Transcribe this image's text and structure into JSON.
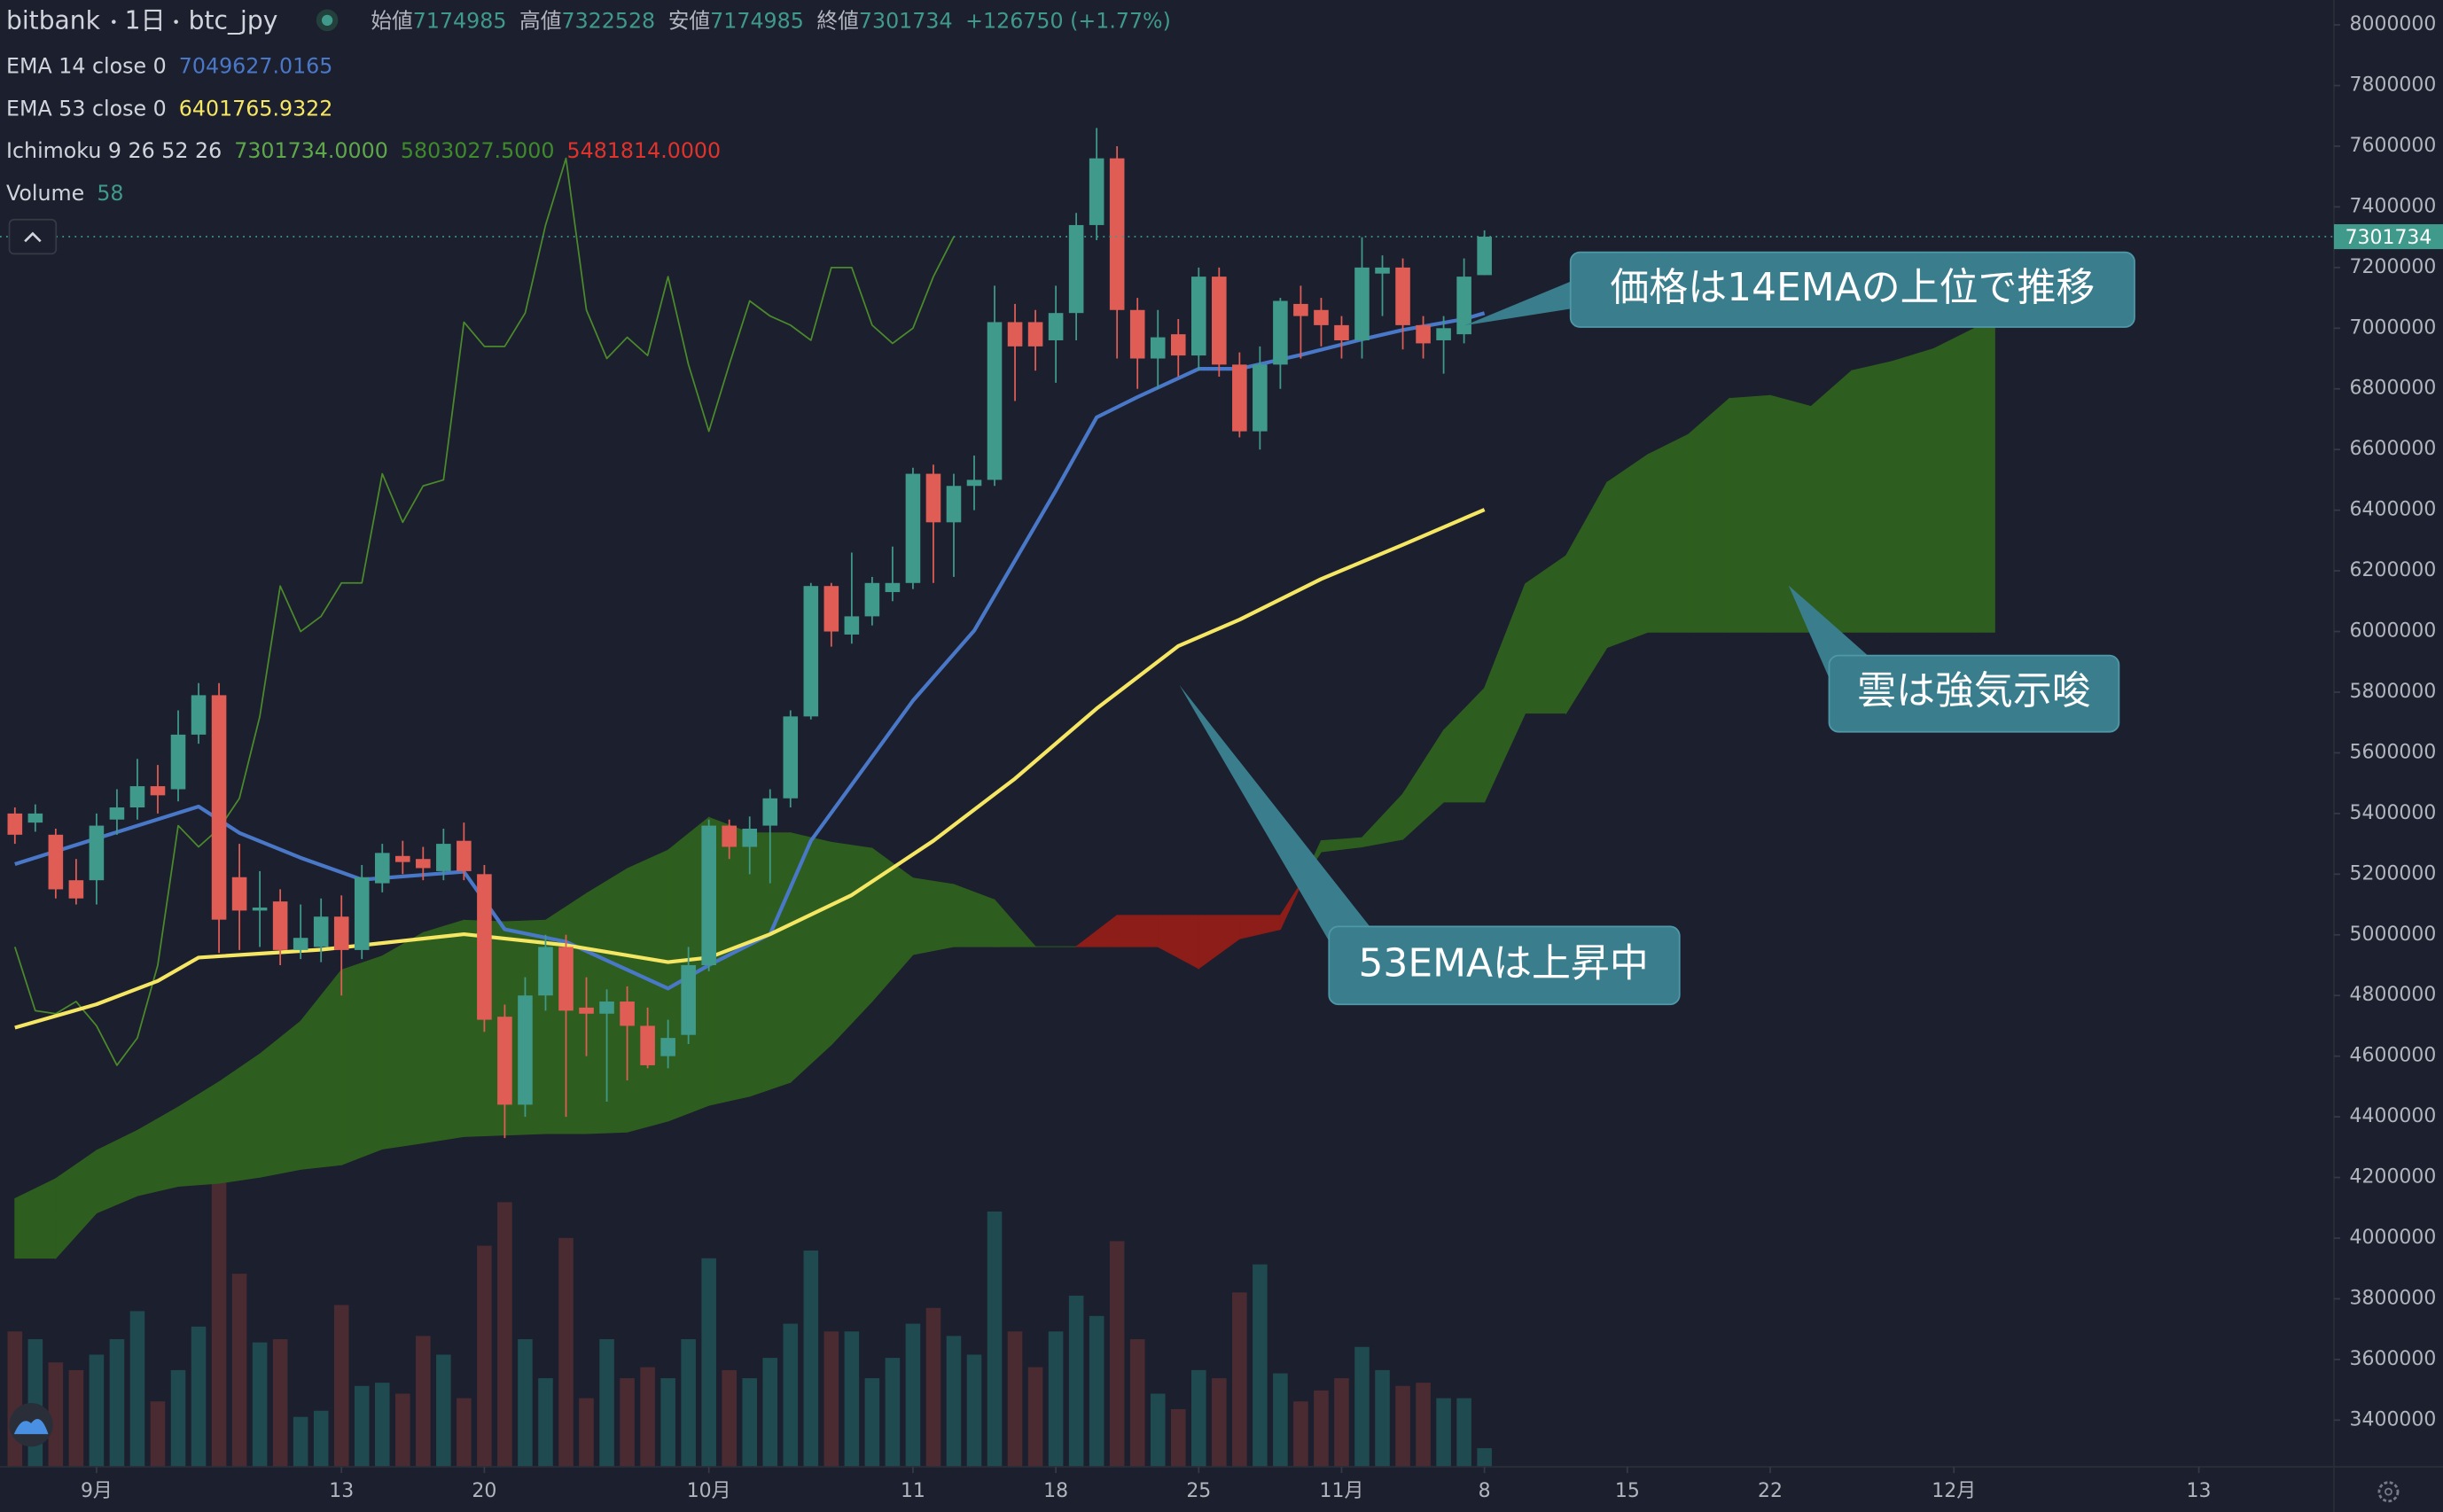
{
  "chart_data": {
    "type": "candlestick",
    "header": {
      "exchange": "bitbank",
      "interval": "1日",
      "symbol": "btc_jpy",
      "ohlc_labels": [
        "始値",
        "高値",
        "安値",
        "終値"
      ],
      "change": "+126750 (+1.77%)"
    },
    "xlim": [
      -4.73,
      109.62
    ],
    "xticks": [
      {
        "value": 0,
        "label": "9月"
      },
      {
        "value": 12,
        "label": "13"
      },
      {
        "value": 19,
        "label": "20"
      },
      {
        "value": 30,
        "label": "10月"
      },
      {
        "value": 40,
        "label": "11"
      },
      {
        "value": 47,
        "label": "18"
      },
      {
        "value": 54,
        "label": "25"
      },
      {
        "value": 61,
        "label": "11月"
      },
      {
        "value": 68,
        "label": "8"
      },
      {
        "value": 75,
        "label": "15"
      },
      {
        "value": 82,
        "label": "22"
      },
      {
        "value": 91,
        "label": "12月"
      },
      {
        "value": 103,
        "label": "13"
      }
    ],
    "ylim": [
      3246000,
      8082000
    ],
    "yticks": [
      3400000,
      3600000,
      3800000,
      4000000,
      4200000,
      4400000,
      4600000,
      4800000,
      5000000,
      5200000,
      5400000,
      5600000,
      5800000,
      6000000,
      6200000,
      6400000,
      6600000,
      6800000,
      7000000,
      7200000,
      7400000,
      7600000,
      7800000,
      8000000
    ],
    "grid": false,
    "candles": {
      "up_color": "#3f9a8b",
      "down_color": "#e05d55",
      "x": [
        -4,
        -3,
        -2,
        -1,
        0,
        1,
        2,
        3,
        4,
        5,
        6,
        7,
        8,
        9,
        10,
        11,
        12,
        13,
        14,
        15,
        16,
        17,
        18,
        19,
        20,
        21,
        22,
        23,
        24,
        25,
        26,
        27,
        28,
        29,
        30,
        31,
        32,
        33,
        34,
        35,
        36,
        37,
        38,
        39,
        40,
        41,
        42,
        43,
        44,
        45,
        46,
        47,
        48,
        49,
        50,
        51,
        52,
        53,
        54,
        55,
        56,
        57,
        58,
        59,
        60,
        61,
        62,
        63,
        64,
        65,
        66,
        67,
        68
      ],
      "open": [
        5400000,
        5370000,
        5330000,
        5180000,
        5180000,
        5380000,
        5420000,
        5490000,
        5480000,
        5660000,
        5790000,
        5190000,
        5080000,
        5110000,
        4950000,
        4960000,
        5060000,
        4950000,
        5170000,
        5260000,
        5250000,
        5210000,
        5310000,
        5200000,
        4730000,
        4440000,
        4800000,
        4960000,
        4760000,
        4740000,
        4780000,
        4700000,
        4600000,
        4670000,
        4900000,
        5360000,
        5290000,
        5360000,
        5450000,
        5720000,
        6150000,
        5990000,
        6050000,
        6130000,
        6160000,
        6520000,
        6360000,
        6480000,
        6500000,
        7020000,
        7020000,
        6960000,
        7050000,
        7340000,
        7560000,
        7060000,
        6900000,
        6980000,
        6910000,
        7170000,
        6880000,
        6660000,
        6880000,
        7080000,
        7060000,
        7010000,
        6960000,
        7180000,
        7200000,
        7010000,
        6960000,
        6980000,
        7174985
      ],
      "high": [
        5420000,
        5430000,
        5350000,
        5250000,
        5400000,
        5480000,
        5580000,
        5560000,
        5740000,
        5830000,
        5830000,
        5300000,
        5210000,
        5150000,
        5100000,
        5120000,
        5130000,
        5230000,
        5300000,
        5310000,
        5290000,
        5350000,
        5370000,
        5230000,
        4770000,
        4860000,
        5000000,
        5000000,
        4860000,
        4820000,
        4830000,
        4760000,
        4720000,
        4960000,
        5380000,
        5380000,
        5390000,
        5480000,
        5740000,
        6160000,
        6160000,
        6260000,
        6180000,
        6280000,
        6540000,
        6550000,
        6520000,
        6580000,
        7140000,
        7080000,
        7060000,
        7140000,
        7380000,
        7660000,
        7600000,
        7100000,
        7060000,
        7030000,
        7200000,
        7200000,
        6920000,
        6940000,
        7100000,
        7140000,
        7100000,
        7040000,
        7300000,
        7240000,
        7230000,
        7040000,
        7040000,
        7230000,
        7322528
      ],
      "low": [
        5300000,
        5340000,
        5120000,
        5100000,
        5100000,
        5330000,
        5380000,
        5400000,
        5440000,
        5630000,
        4940000,
        4950000,
        4960000,
        4900000,
        4920000,
        4910000,
        4800000,
        4920000,
        5140000,
        5200000,
        5180000,
        5180000,
        5180000,
        4680000,
        4330000,
        4400000,
        4750000,
        4400000,
        4600000,
        4450000,
        4520000,
        4560000,
        4560000,
        4640000,
        4880000,
        5250000,
        5200000,
        5170000,
        5420000,
        5710000,
        5950000,
        5960000,
        6020000,
        6100000,
        6140000,
        6160000,
        6180000,
        6400000,
        6480000,
        6760000,
        6860000,
        6820000,
        6960000,
        7290000,
        6900000,
        6800000,
        6800000,
        6840000,
        6860000,
        6840000,
        6640000,
        6600000,
        6800000,
        6900000,
        6940000,
        6900000,
        6900000,
        7040000,
        6930000,
        6900000,
        6850000,
        6950000,
        7174985
      ],
      "close": [
        5330000,
        5400000,
        5150000,
        5120000,
        5360000,
        5420000,
        5490000,
        5460000,
        5660000,
        5790000,
        5050000,
        5080000,
        5090000,
        4950000,
        4990000,
        5060000,
        4950000,
        5190000,
        5270000,
        5240000,
        5220000,
        5300000,
        5210000,
        4720000,
        4440000,
        4800000,
        4960000,
        4750000,
        4740000,
        4780000,
        4700000,
        4570000,
        4660000,
        4900000,
        5360000,
        5290000,
        5350000,
        5450000,
        5720000,
        6150000,
        6000000,
        6050000,
        6160000,
        6160000,
        6520000,
        6360000,
        6480000,
        6500000,
        7020000,
        6940000,
        6940000,
        7050000,
        7340000,
        7560000,
        7060000,
        6900000,
        6970000,
        6910000,
        7170000,
        6880000,
        6660000,
        6880000,
        7090000,
        7040000,
        7010000,
        6960000,
        7200000,
        7200000,
        7010000,
        6950000,
        7000000,
        7170000,
        7301734
      ]
    },
    "lines": [
      {
        "name": "EMA 14 close 0",
        "color": "#4a78c8",
        "x": [
          -4,
          5,
          7,
          10,
          13,
          18,
          20,
          23,
          28,
          30,
          33,
          35,
          40,
          43,
          47,
          49,
          51,
          54,
          56,
          59,
          62,
          64,
          67,
          68
        ],
        "values": [
          5233000,
          5423000,
          5336000,
          5254000,
          5182000,
          5208000,
          5018000,
          4977000,
          4823000,
          4900000,
          5002000,
          5310000,
          5772000,
          6003000,
          6465000,
          6706000,
          6773000,
          6866000,
          6866000,
          6912000,
          6963000,
          6994000,
          7030000,
          7049627.0165
        ]
      },
      {
        "name": "EMA 53 close 0",
        "color": "#f5e663",
        "x": [
          -4,
          0,
          3,
          5,
          11,
          18,
          23,
          28,
          30,
          33,
          37,
          41,
          45,
          49,
          53,
          56,
          60,
          64,
          68
        ],
        "values": [
          4694000,
          4771000,
          4848000,
          4925000,
          4951000,
          5002000,
          4966000,
          4910000,
          4925000,
          5002000,
          5131000,
          5310000,
          5515000,
          5746000,
          5952000,
          6039000,
          6173000,
          6286000,
          6401765.9322
        ]
      }
    ],
    "ichimoku": {
      "name": "Ichimoku 9 26 52 26",
      "legend_values": [
        "7301734.0000",
        "5803027.5000",
        "5481814.0000"
      ],
      "legend_colors": [
        "#5ea84a",
        "#3f8a2a",
        "#e0332b"
      ],
      "lagging": {
        "color": "#4a8a2a",
        "x": [
          -4,
          -3,
          -2,
          -1,
          0,
          1,
          2,
          3,
          4,
          5,
          6,
          7,
          8,
          9,
          10,
          11,
          12,
          13,
          14,
          15,
          16,
          17,
          18,
          19,
          20,
          21,
          22,
          23,
          24,
          25,
          26,
          27,
          28,
          29,
          30,
          31,
          32,
          33,
          34,
          35,
          36,
          37,
          38,
          39,
          40,
          41,
          42
        ],
        "values": [
          4960000,
          4750000,
          4740000,
          4780000,
          4700000,
          4570000,
          4660000,
          4900000,
          5360000,
          5290000,
          5350000,
          5450000,
          5720000,
          6150000,
          6000000,
          6050000,
          6160000,
          6160000,
          6520000,
          6360000,
          6480000,
          6500000,
          7020000,
          6940000,
          6940000,
          7050000,
          7340000,
          7560000,
          7060000,
          6900000,
          6970000,
          6910000,
          7170000,
          6880000,
          6660000,
          6880000,
          7090000,
          7040000,
          7010000,
          6960000,
          7200000,
          7200000,
          7010000,
          6950000,
          7000000,
          7170000,
          7301734
        ]
      },
      "cloud": {
        "up_color": "#2e5e1f",
        "down_color": "#8c1d18",
        "x": [
          -4,
          -2,
          0,
          2,
          4,
          6,
          8,
          10,
          12,
          14,
          16,
          18,
          20,
          22,
          24,
          26,
          28,
          30,
          32,
          34,
          36,
          38,
          40,
          42,
          44,
          46,
          48,
          50,
          52,
          54,
          56,
          58,
          60,
          62,
          64,
          66,
          68,
          70,
          72,
          74,
          76,
          78,
          80,
          82,
          84,
          86,
          88,
          90,
          92,
          93
        ],
        "span_a": [
          4130000,
          4196000,
          4289000,
          4355000,
          4432000,
          4515000,
          4607000,
          4715000,
          4884000,
          4930000,
          5007000,
          5048000,
          5043000,
          5048000,
          5136000,
          5218000,
          5279000,
          5387000,
          5336000,
          5336000,
          5305000,
          5285000,
          5187000,
          5166000,
          5115000,
          4961000,
          4961000,
          4961000,
          4961000,
          4889000,
          4987000,
          5018000,
          5310000,
          5320000,
          5464000,
          5674000,
          5813000,
          6157000,
          6250000,
          6491000,
          6583000,
          6650000,
          6768000,
          6778000,
          6742000,
          6860000,
          6891000,
          6932000,
          6999000,
          7055000
        ],
        "span_b": [
          3934000,
          3934000,
          4083000,
          4140000,
          4171000,
          4181000,
          4201000,
          4227000,
          4242000,
          4294000,
          4314000,
          4335000,
          4340000,
          4345000,
          4345000,
          4350000,
          4386000,
          4438000,
          4468000,
          4514000,
          4638000,
          4781000,
          4935000,
          4961000,
          4961000,
          4961000,
          4961000,
          5064000,
          5064000,
          5064000,
          5064000,
          5064000,
          5274000,
          5290000,
          5315000,
          5438000,
          5438000,
          5731000,
          5731000,
          5947000,
          5998000,
          5998000,
          5998000,
          5998000,
          5998000,
          5998000,
          5998000,
          5998000,
          5998000,
          5998000
        ]
      }
    },
    "volume": {
      "name": "Volume",
      "ylim": [
        0,
        4550
      ],
      "up_color": "#1f4a50",
      "down_color": "#4a2b31",
      "values": [
        420,
        396,
        324,
        300,
        348,
        396,
        483,
        203,
        300,
        435,
        1024,
        599,
        386,
        396,
        155,
        174,
        502,
        251,
        261,
        227,
        406,
        348,
        213,
        686,
        821,
        396,
        275,
        710,
        213,
        396,
        275,
        309,
        275,
        396,
        647,
        300,
        275,
        338,
        444,
        671,
        420,
        420,
        275,
        338,
        444,
        493,
        406,
        348,
        792,
        420,
        309,
        420,
        531,
        468,
        700,
        396,
        227,
        179,
        300,
        275,
        541,
        628,
        290,
        203,
        237,
        275,
        372,
        300,
        251,
        261,
        213,
        213,
        58
      ]
    },
    "annotations": [
      {
        "text": "価格は14EMAの上位で推移"
      },
      {
        "text": "雲は強気示唆"
      },
      {
        "text": "53EMAは上昇中"
      }
    ]
  }
}
